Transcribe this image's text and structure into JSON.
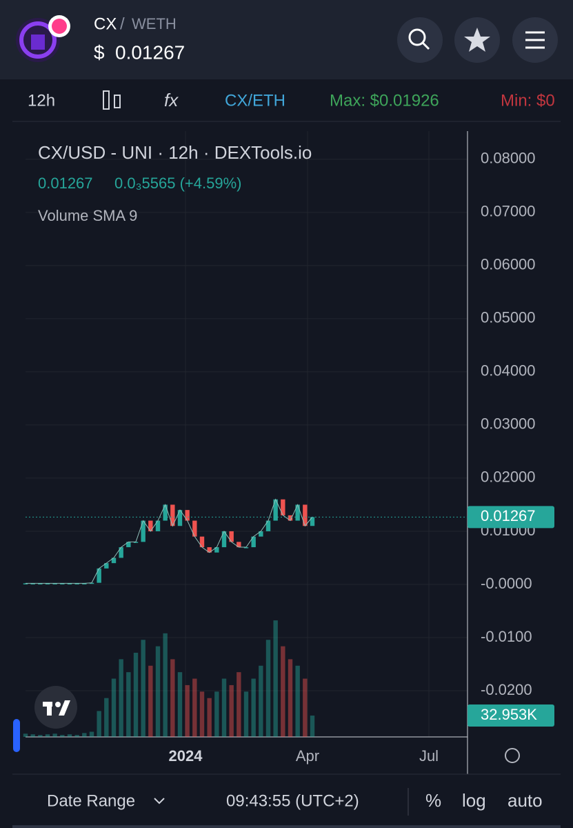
{
  "header": {
    "base": "CX",
    "separator": "/",
    "quote": "WETH",
    "currency": "$"
  },
  "toolbar": {
    "interval": "12h",
    "pair": "CX/ETH",
    "max": "Max: $0.01926",
    "min": "Min: $0"
  },
  "chart_data": {
    "type": "candlestick-line",
    "legend_title": "CX/USD - UNI · 12h · DEXTools.io",
    "legend_price": "0.01267",
    "legend_change": "0.0₃5565 (+4.59%)",
    "volume_label": "Volume SMA 9",
    "values": [
      0.0002,
      0.0002,
      0.0002,
      0.0002,
      0.0002,
      0.0002,
      0.0002,
      0.0002,
      0.0002,
      0.0003,
      0.003,
      0.004,
      0.005,
      0.007,
      0.008,
      0.008,
      0.012,
      0.01,
      0.012,
      0.015,
      0.011,
      0.014,
      0.012,
      0.009,
      0.007,
      0.006,
      0.007,
      0.01,
      0.008,
      0.007,
      0.007,
      0.009,
      0.01,
      0.012,
      0.016,
      0.013,
      0.012,
      0.015,
      0.011,
      0.01267
    ],
    "volumes": [
      5,
      4,
      3,
      4,
      5,
      3,
      4,
      3,
      6,
      8,
      40,
      60,
      90,
      120,
      100,
      130,
      150,
      110,
      140,
      160,
      120,
      100,
      80,
      90,
      70,
      60,
      70,
      90,
      80,
      100,
      70,
      90,
      110,
      150,
      180,
      140,
      120,
      110,
      90,
      32.953
    ],
    "volume_value_labels": {
      "39": "32.953K"
    },
    "volume_lim": [
      0,
      227
    ],
    "color": "#26a69a",
    "down_color": "#ef5350",
    "ylim": [
      -0.0287,
      0.0853
    ],
    "yticks": [
      {
        "value": 0.08,
        "label": "0.08000"
      },
      {
        "value": 0.07,
        "label": "0.07000"
      },
      {
        "value": 0.06,
        "label": "0.06000"
      },
      {
        "value": 0.05,
        "label": "0.05000"
      },
      {
        "value": 0.04,
        "label": "0.04000"
      },
      {
        "value": 0.03,
        "label": "0.03000"
      },
      {
        "value": 0.02,
        "label": "0.02000"
      },
      {
        "value": 0.01,
        "label": "0.01000"
      },
      {
        "value": 0,
        "label": "-0.0000"
      },
      {
        "value": -0.01,
        "label": "-0.0100"
      },
      {
        "value": -0.02,
        "label": "-0.0200"
      }
    ],
    "x_labels": [
      "2024",
      "Apr",
      "Jul"
    ],
    "grid": true
  },
  "footer": {
    "date_range": "Date Range",
    "time": "09:43:55 (UTC+2)",
    "percent": "%",
    "log": "log",
    "auto": "auto"
  }
}
